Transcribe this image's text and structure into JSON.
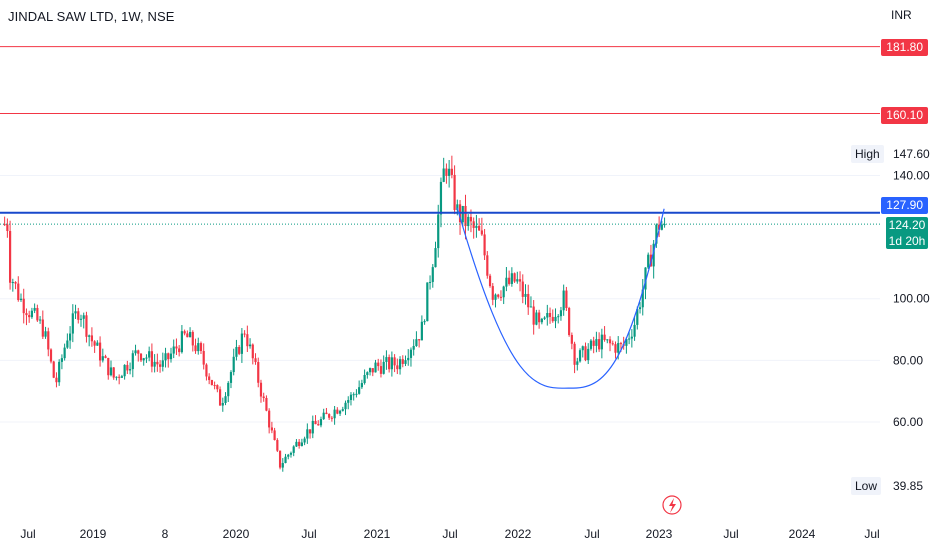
{
  "chart_title": "JINDAL SAW LTD, 1W, NSE",
  "currency": "INR",
  "colors": {
    "up": "#089981",
    "down": "#f23645",
    "resistance_line": "#f23645",
    "breakout_line": "#1848cc",
    "cup_curve": "#2962ff",
    "last_price_line": "#089981"
  },
  "price_tags": {
    "r1": "181.80",
    "r2": "160.10",
    "breakout": "127.90",
    "last_price": "124.20",
    "countdown": "1d 20h"
  },
  "high": {
    "label": "High",
    "value": "147.60"
  },
  "low": {
    "label": "Low",
    "value": "39.85"
  },
  "event_icon": "lightning-bolt-icon",
  "chart_data": {
    "type": "candlestick",
    "title": "JINDAL SAW LTD, 1W, NSE",
    "y_axis": {
      "ticks": [
        "140.00",
        "100.00",
        "80.00",
        "60.00"
      ],
      "unit": "INR",
      "range": [
        39.85,
        185
      ]
    },
    "x_axis": {
      "ticks": [
        "Jul",
        "2019",
        "8",
        "2020",
        "Jul",
        "2021",
        "Jul",
        "2022",
        "Jul",
        "2023",
        "Jul",
        "2024",
        "Jul"
      ]
    },
    "horizontal_levels": [
      181.8,
      160.1,
      127.9
    ],
    "last_price": 124.2,
    "high": 147.6,
    "low": 39.85,
    "price_path": [
      [
        "2018-06",
        110
      ],
      [
        "2018-07",
        100
      ],
      [
        "2018-09",
        90
      ],
      [
        "2018-10",
        72
      ],
      [
        "2018-11",
        88
      ],
      [
        "2018-12",
        97
      ],
      [
        "2019-01",
        87
      ],
      [
        "2019-03",
        74
      ],
      [
        "2019-05",
        83
      ],
      [
        "2019-07",
        78
      ],
      [
        "2019-09",
        88
      ],
      [
        "2019-10",
        84
      ],
      [
        "2019-12",
        66
      ],
      [
        "2020-02",
        90
      ],
      [
        "2020-03",
        76
      ],
      [
        "2020-05",
        46
      ],
      [
        "2020-07",
        56
      ],
      [
        "2020-09",
        62
      ],
      [
        "2020-11",
        68
      ],
      [
        "2021-01",
        78
      ],
      [
        "2021-03",
        79
      ],
      [
        "2021-05",
        90
      ],
      [
        "2021-06",
        115
      ],
      [
        "2021-07",
        145
      ],
      [
        "2021-08",
        128
      ],
      [
        "2021-10",
        120
      ],
      [
        "2021-11",
        102
      ],
      [
        "2022-01",
        106
      ],
      [
        "2022-03",
        90
      ],
      [
        "2022-05",
        100
      ],
      [
        "2022-06",
        80
      ],
      [
        "2022-08",
        86
      ],
      [
        "2022-10",
        84
      ],
      [
        "2022-11",
        92
      ],
      [
        "2022-12",
        108
      ],
      [
        "2023-01",
        124.2
      ]
    ],
    "pattern": "cup (rounded base) with breakout level 127.90"
  }
}
